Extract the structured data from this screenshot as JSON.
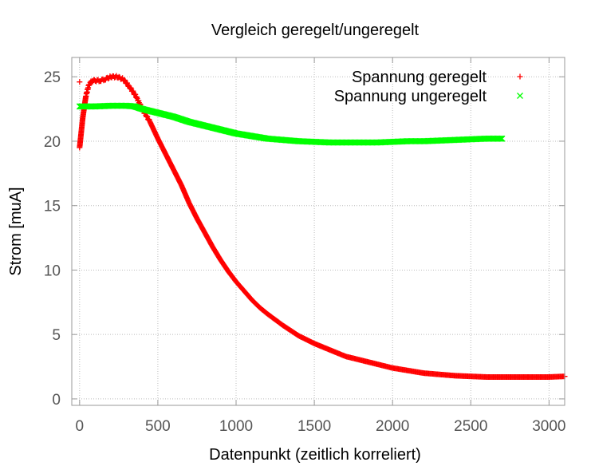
{
  "chart_data": {
    "type": "scatter",
    "title": "Vergleich geregelt/ungeregelt",
    "xlabel": "Datenpunkt (zeitlich korreliert)",
    "ylabel": "Strom [muA]",
    "xlim": [
      -50,
      3100
    ],
    "ylim": [
      -0.5,
      26.5
    ],
    "xticks": [
      0,
      500,
      1000,
      1500,
      2000,
      2500,
      3000
    ],
    "yticks": [
      0,
      5,
      10,
      15,
      20,
      25
    ],
    "grid": true,
    "legend_position": "top-right",
    "series": [
      {
        "name": "Spannung geregelt",
        "color": "#ff0000",
        "marker": "plus",
        "points": [
          [
            0,
            24.6
          ],
          [
            0,
            19.5
          ],
          [
            20,
            21.8
          ],
          [
            40,
            23.5
          ],
          [
            60,
            24.4
          ],
          [
            80,
            24.7
          ],
          [
            100,
            24.7
          ],
          [
            130,
            24.7
          ],
          [
            160,
            24.8
          ],
          [
            200,
            25.0
          ],
          [
            240,
            25.0
          ],
          [
            280,
            24.8
          ],
          [
            320,
            24.2
          ],
          [
            360,
            23.5
          ],
          [
            400,
            22.5
          ],
          [
            450,
            21.5
          ],
          [
            500,
            20.2
          ],
          [
            550,
            19.0
          ],
          [
            600,
            17.8
          ],
          [
            650,
            16.6
          ],
          [
            700,
            15.2
          ],
          [
            750,
            14.0
          ],
          [
            800,
            12.9
          ],
          [
            850,
            11.8
          ],
          [
            900,
            10.8
          ],
          [
            950,
            9.9
          ],
          [
            1000,
            9.1
          ],
          [
            1050,
            8.4
          ],
          [
            1100,
            7.7
          ],
          [
            1150,
            7.1
          ],
          [
            1200,
            6.6
          ],
          [
            1300,
            5.7
          ],
          [
            1400,
            4.9
          ],
          [
            1500,
            4.3
          ],
          [
            1600,
            3.8
          ],
          [
            1700,
            3.3
          ],
          [
            1800,
            3.0
          ],
          [
            1900,
            2.7
          ],
          [
            2000,
            2.4
          ],
          [
            2100,
            2.2
          ],
          [
            2200,
            2.0
          ],
          [
            2300,
            1.9
          ],
          [
            2400,
            1.8
          ],
          [
            2500,
            1.75
          ],
          [
            2600,
            1.7
          ],
          [
            2700,
            1.7
          ],
          [
            2800,
            1.7
          ],
          [
            2900,
            1.7
          ],
          [
            3000,
            1.7
          ],
          [
            3100,
            1.75
          ]
        ]
      },
      {
        "name": "Spannung ungeregelt",
        "color": "#00ff00",
        "marker": "cross",
        "points": [
          [
            0,
            22.7
          ],
          [
            100,
            22.7
          ],
          [
            200,
            22.75
          ],
          [
            300,
            22.75
          ],
          [
            350,
            22.7
          ],
          [
            400,
            22.5
          ],
          [
            500,
            22.2
          ],
          [
            600,
            21.9
          ],
          [
            700,
            21.5
          ],
          [
            800,
            21.2
          ],
          [
            900,
            20.9
          ],
          [
            1000,
            20.6
          ],
          [
            1100,
            20.4
          ],
          [
            1200,
            20.2
          ],
          [
            1300,
            20.1
          ],
          [
            1400,
            20.0
          ],
          [
            1500,
            19.95
          ],
          [
            1600,
            19.9
          ],
          [
            1700,
            19.9
          ],
          [
            1800,
            19.9
          ],
          [
            1900,
            19.9
          ],
          [
            2000,
            19.95
          ],
          [
            2100,
            20.0
          ],
          [
            2200,
            20.0
          ],
          [
            2300,
            20.05
          ],
          [
            2400,
            20.1
          ],
          [
            2500,
            20.15
          ],
          [
            2600,
            20.2
          ],
          [
            2700,
            20.2
          ]
        ]
      }
    ]
  }
}
